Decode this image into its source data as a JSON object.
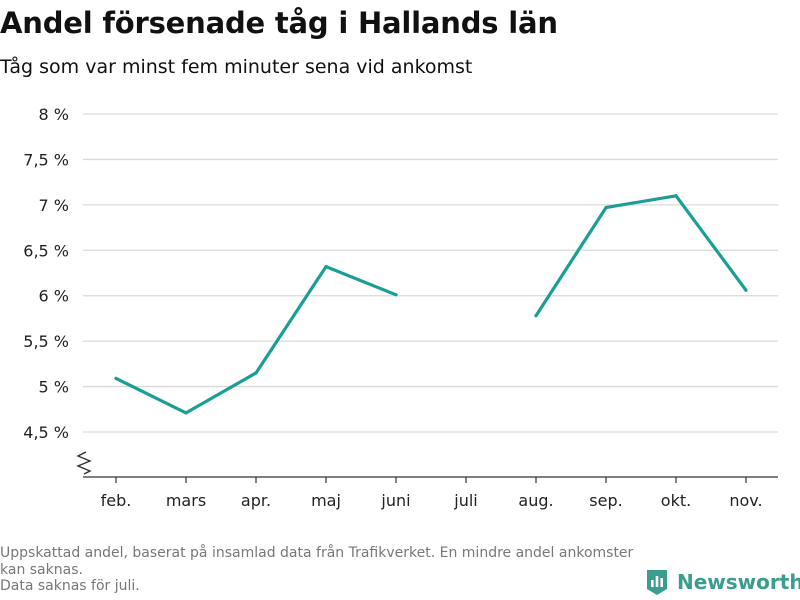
{
  "header": {
    "title": "Andel försenade tåg i Hallands län",
    "subtitle": "Tåg som var minst fem minuter sena vid ankomst"
  },
  "footnote": {
    "line1": "Uppskattad andel, baserat på insamlad data från Trafikverket. En mindre andel ankomster kan saknas.",
    "line2": "Data saknas för juli."
  },
  "brand": {
    "name": "Newsworthy",
    "color": "#3a9d8e",
    "icon": "bar-chart-icon"
  },
  "colors": {
    "line": "#1a9e95",
    "grid": "#d9d9d9",
    "axis": "#333333"
  },
  "chart_data": {
    "type": "line",
    "categories": [
      "feb.",
      "mars",
      "apr.",
      "maj",
      "juni",
      "juli",
      "aug.",
      "sep.",
      "okt.",
      "nov."
    ],
    "series": [
      {
        "values": [
          5.09,
          4.71,
          5.15,
          6.32,
          6.01,
          null,
          5.78,
          6.97,
          7.1,
          6.06
        ]
      }
    ],
    "ylim": [
      4.5,
      8
    ],
    "yticks": [
      {
        "value": 8,
        "label": "8 %"
      },
      {
        "value": 7.5,
        "label": "7,5 %"
      },
      {
        "value": 7,
        "label": "7 %"
      },
      {
        "value": 6.5,
        "label": "6,5 %"
      },
      {
        "value": 6,
        "label": "6 %"
      },
      {
        "value": 5.5,
        "label": "5,5 %"
      },
      {
        "value": 5,
        "label": "5 %"
      },
      {
        "value": 4.5,
        "label": "4,5 %"
      }
    ],
    "axis_break": true,
    "grid": true,
    "xlabel": "",
    "ylabel": ""
  }
}
